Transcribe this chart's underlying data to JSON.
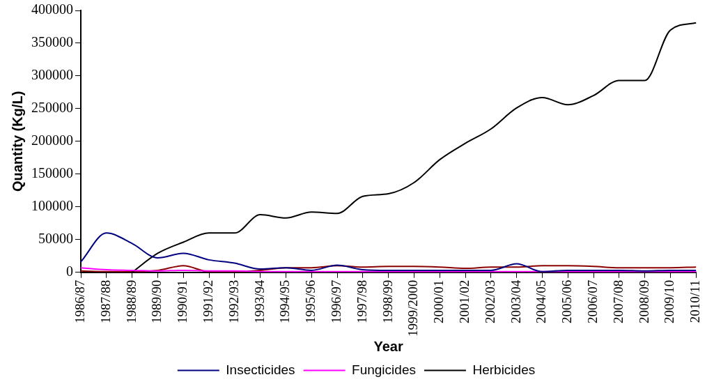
{
  "chart_data": {
    "type": "line",
    "xlabel": "Year",
    "ylabel": "Quantity (Kg/L)",
    "categories": [
      "1986/87",
      "1987/88",
      "1988/89",
      "1989/90",
      "1990/91",
      "1991/92",
      "1992/93",
      "1993/94",
      "1994/95",
      "1995/96",
      "1996/97",
      "1997/98",
      "1998/99",
      "1999/2000",
      "2000/01",
      "2001/02",
      "2002/03",
      "2003/04",
      "2004/05",
      "2005/06",
      "2006/07",
      "2007/08",
      "2008/09",
      "2009/10",
      "2010/11"
    ],
    "series": [
      {
        "name": "Insecticides",
        "color": "#000080",
        "values": [
          16000,
          60000,
          44000,
          22000,
          29000,
          19000,
          14000,
          5000,
          7000,
          3000,
          11000,
          4000,
          3000,
          3000,
          3000,
          3000,
          3000,
          13000,
          1000,
          3000,
          3000,
          3000,
          2000,
          3000,
          3000
        ]
      },
      {
        "name": "Fungicides",
        "color": "#ff00ff",
        "values": [
          7000,
          4000,
          3000,
          2000,
          3000,
          2000,
          2000,
          1000,
          1000,
          1000,
          1000,
          1000,
          1000,
          1000,
          1000,
          1000,
          1000,
          1000,
          1000,
          1000,
          1000,
          1000,
          1000,
          1000,
          1000
        ]
      },
      {
        "name": "Herbicides",
        "color": "#000000",
        "values": [
          null,
          null,
          0,
          29000,
          46000,
          60000,
          60000,
          88000,
          83000,
          92000,
          90000,
          116000,
          120000,
          137000,
          172000,
          197000,
          219000,
          251000,
          267000,
          256000,
          270000,
          293000,
          293000,
          370000,
          381000
        ]
      },
      {
        "color": "#8b0000",
        "values": [
          2000,
          1000,
          1000,
          3000,
          10000,
          1000,
          1000,
          3000,
          7000,
          7000,
          10000,
          8000,
          9000,
          9000,
          8000,
          6000,
          8000,
          8000,
          10000,
          10000,
          9000,
          7000,
          7000,
          7000,
          8000
        ]
      }
    ],
    "ylim": [
      0,
      400000
    ],
    "yticks": [
      0,
      50000,
      100000,
      150000,
      200000,
      250000,
      300000,
      350000,
      400000
    ],
    "grid": false,
    "legend": "bottom",
    "marker": "none",
    "line_style": "solid"
  }
}
